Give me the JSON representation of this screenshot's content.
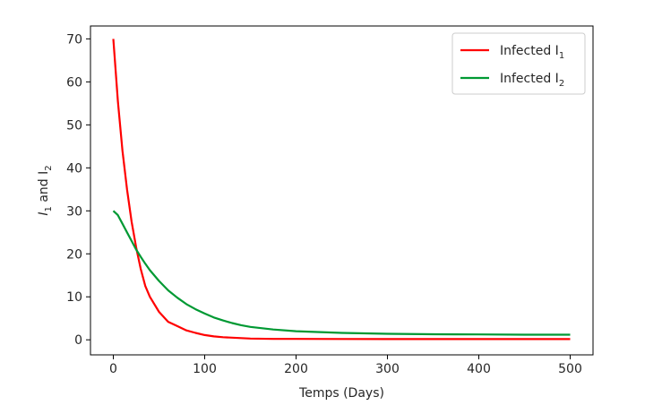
{
  "chart_data": {
    "type": "line",
    "xlabel": "Temps (Days)",
    "ylabel": "I",
    "ylabel_sub1": "1",
    "ylabel_mid": " and I",
    "ylabel_sub2": "2",
    "xlim": [
      -25,
      525
    ],
    "ylim": [
      -3.5,
      73
    ],
    "xticks": [
      0,
      100,
      200,
      300,
      400,
      500
    ],
    "yticks": [
      0,
      10,
      20,
      30,
      40,
      50,
      60,
      70
    ],
    "grid": false,
    "legend_position": "top-right",
    "series": [
      {
        "name": "Infected I",
        "name_sub": "1",
        "color": "#ff0000",
        "x": [
          0,
          5,
          10,
          15,
          20,
          25,
          30,
          35,
          40,
          50,
          60,
          70,
          80,
          90,
          100,
          110,
          120,
          130,
          140,
          150,
          175,
          200,
          250,
          300,
          350,
          400,
          450,
          500
        ],
        "y": [
          70,
          55.5,
          44,
          35,
          27.5,
          21.5,
          16.5,
          12.5,
          10,
          6.5,
          4.2,
          3.2,
          2.2,
          1.6,
          1.1,
          0.8,
          0.6,
          0.5,
          0.4,
          0.3,
          0.22,
          0.2,
          0.18,
          0.17,
          0.17,
          0.17,
          0.17,
          0.17
        ]
      },
      {
        "name": "Infected I",
        "name_sub": "2",
        "color": "#009933",
        "x": [
          0,
          5,
          10,
          15,
          20,
          25,
          30,
          35,
          40,
          50,
          60,
          70,
          80,
          90,
          100,
          110,
          120,
          130,
          140,
          150,
          175,
          200,
          250,
          300,
          350,
          400,
          450,
          500
        ],
        "y": [
          30,
          29,
          27,
          25,
          23,
          21,
          19.3,
          17.7,
          16.2,
          13.7,
          11.5,
          9.8,
          8.3,
          7.1,
          6.1,
          5.2,
          4.5,
          3.9,
          3.4,
          3.0,
          2.4,
          2.0,
          1.6,
          1.4,
          1.3,
          1.25,
          1.2,
          1.2
        ]
      }
    ]
  }
}
